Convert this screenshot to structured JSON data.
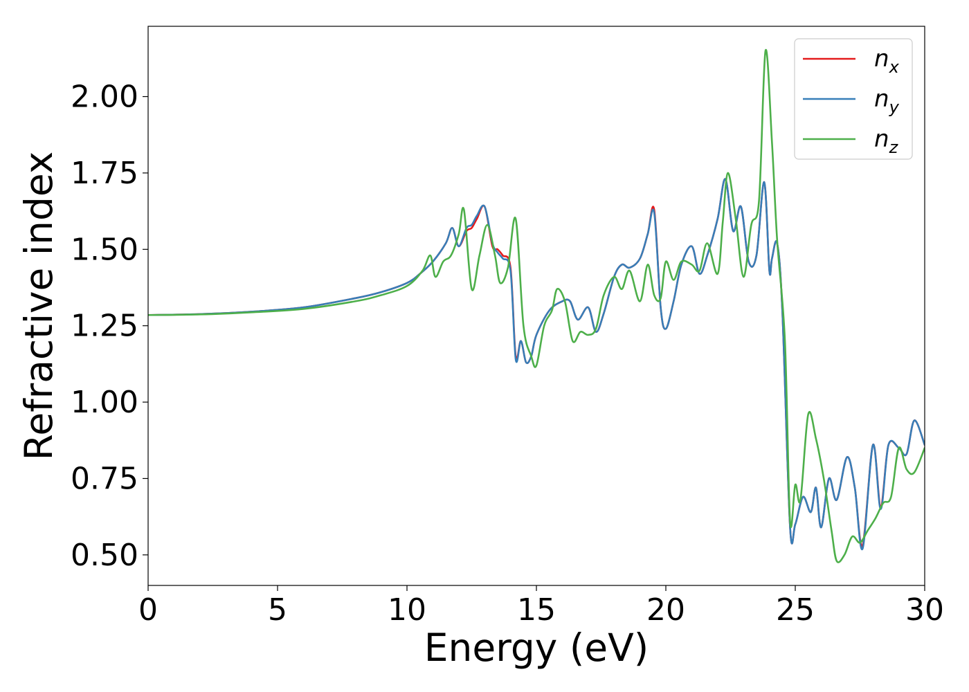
{
  "chart_data": {
    "type": "line",
    "xlabel": "Energy (eV)",
    "ylabel": "Refractive index",
    "xlim": [
      0,
      30
    ],
    "ylim": [
      0.4,
      2.23
    ],
    "xticks": [
      "0",
      "5",
      "10",
      "15",
      "20",
      "25",
      "30"
    ],
    "yticks": [
      "0.50",
      "0.75",
      "1.00",
      "1.25",
      "1.50",
      "1.75",
      "2.00"
    ],
    "grid": false,
    "legend_position": "top-right",
    "series": [
      {
        "name": "n_x",
        "label_base": "n",
        "label_sub": "x",
        "color": "#e41a1c",
        "x": [
          0,
          2,
          4,
          6,
          8,
          9,
          10,
          10.5,
          11,
          11.5,
          11.75,
          12,
          12.3,
          12.5,
          12.7,
          13,
          13.3,
          13.5,
          13.7,
          14,
          14.2,
          14.4,
          14.6,
          14.8,
          15,
          15.5,
          16,
          16.3,
          16.6,
          17,
          17.3,
          17.6,
          18,
          18.3,
          18.6,
          19,
          19.3,
          19.55,
          19.8,
          20,
          20.3,
          20.6,
          21,
          21.3,
          21.6,
          22,
          22.3,
          22.6,
          22.9,
          23.2,
          23.5,
          23.8,
          24,
          24.1,
          24.3,
          24.5,
          24.8,
          25,
          25.3,
          25.6,
          25.8,
          26,
          26.3,
          26.6,
          27,
          27.3,
          27.6,
          28,
          28.3,
          28.6,
          29,
          29.3,
          29.6,
          30
        ],
        "values": [
          1.285,
          1.288,
          1.296,
          1.31,
          1.34,
          1.36,
          1.39,
          1.42,
          1.46,
          1.52,
          1.57,
          1.51,
          1.56,
          1.57,
          1.6,
          1.64,
          1.51,
          1.5,
          1.48,
          1.44,
          1.15,
          1.2,
          1.13,
          1.15,
          1.22,
          1.3,
          1.33,
          1.33,
          1.27,
          1.31,
          1.23,
          1.29,
          1.41,
          1.45,
          1.44,
          1.47,
          1.55,
          1.63,
          1.31,
          1.24,
          1.33,
          1.45,
          1.51,
          1.42,
          1.48,
          1.6,
          1.73,
          1.56,
          1.64,
          1.46,
          1.48,
          1.72,
          1.43,
          1.47,
          1.52,
          1.3,
          0.59,
          0.6,
          0.69,
          0.64,
          0.72,
          0.59,
          0.75,
          0.68,
          0.82,
          0.72,
          0.53,
          0.86,
          0.66,
          0.86,
          0.85,
          0.83,
          0.94,
          0.86
        ]
      },
      {
        "name": "n_y",
        "label_base": "n",
        "label_sub": "y",
        "color": "#377eb8",
        "x": [
          0,
          2,
          4,
          6,
          8,
          9,
          10,
          10.5,
          11,
          11.5,
          11.75,
          12,
          12.3,
          12.5,
          12.7,
          13,
          13.3,
          13.5,
          13.7,
          14,
          14.2,
          14.4,
          14.6,
          14.8,
          15,
          15.5,
          16,
          16.3,
          16.6,
          17,
          17.3,
          17.6,
          18,
          18.3,
          18.6,
          19,
          19.3,
          19.55,
          19.8,
          20,
          20.3,
          20.6,
          21,
          21.3,
          21.6,
          22,
          22.3,
          22.6,
          22.9,
          23.2,
          23.5,
          23.8,
          24,
          24.1,
          24.3,
          24.5,
          24.8,
          25,
          25.3,
          25.6,
          25.8,
          26,
          26.3,
          26.6,
          27,
          27.3,
          27.6,
          28,
          28.3,
          28.6,
          29,
          29.3,
          29.6,
          30
        ],
        "values": [
          1.285,
          1.288,
          1.296,
          1.31,
          1.34,
          1.36,
          1.39,
          1.42,
          1.46,
          1.52,
          1.57,
          1.51,
          1.57,
          1.58,
          1.61,
          1.64,
          1.52,
          1.49,
          1.47,
          1.43,
          1.14,
          1.2,
          1.13,
          1.15,
          1.22,
          1.3,
          1.33,
          1.33,
          1.27,
          1.31,
          1.23,
          1.29,
          1.41,
          1.45,
          1.44,
          1.47,
          1.55,
          1.62,
          1.31,
          1.24,
          1.33,
          1.45,
          1.51,
          1.42,
          1.48,
          1.6,
          1.73,
          1.56,
          1.64,
          1.46,
          1.48,
          1.72,
          1.43,
          1.47,
          1.52,
          1.3,
          0.59,
          0.6,
          0.69,
          0.64,
          0.72,
          0.59,
          0.75,
          0.68,
          0.82,
          0.72,
          0.52,
          0.86,
          0.65,
          0.86,
          0.85,
          0.83,
          0.94,
          0.86
        ]
      },
      {
        "name": "n_z",
        "label_base": "n",
        "label_sub": "z",
        "color": "#4daf4a",
        "x": [
          0,
          2,
          4,
          6,
          8,
          9,
          10,
          10.6,
          10.9,
          11.1,
          11.4,
          11.7,
          12,
          12.2,
          12.5,
          12.8,
          13.1,
          13.4,
          13.6,
          13.9,
          14.2,
          14.5,
          14.8,
          15,
          15.3,
          15.6,
          15.8,
          16.1,
          16.4,
          16.7,
          17,
          17.3,
          17.6,
          18,
          18.3,
          18.6,
          19,
          19.3,
          19.55,
          19.8,
          20,
          20.3,
          20.6,
          21,
          21.3,
          21.6,
          22,
          22.2,
          22.4,
          22.7,
          23,
          23.3,
          23.6,
          23.85,
          24.1,
          24.3,
          24.6,
          24.8,
          25,
          25.2,
          25.5,
          25.8,
          26.1,
          26.4,
          26.6,
          26.9,
          27.2,
          27.5,
          27.8,
          28.1,
          28.4,
          28.7,
          29,
          29.3,
          29.6,
          30
        ],
        "values": [
          1.285,
          1.287,
          1.294,
          1.305,
          1.33,
          1.35,
          1.38,
          1.43,
          1.48,
          1.41,
          1.46,
          1.48,
          1.55,
          1.63,
          1.37,
          1.48,
          1.58,
          1.48,
          1.39,
          1.44,
          1.6,
          1.25,
          1.15,
          1.12,
          1.25,
          1.3,
          1.37,
          1.33,
          1.2,
          1.23,
          1.22,
          1.24,
          1.35,
          1.41,
          1.37,
          1.43,
          1.33,
          1.45,
          1.35,
          1.34,
          1.46,
          1.4,
          1.46,
          1.45,
          1.43,
          1.52,
          1.42,
          1.59,
          1.75,
          1.6,
          1.41,
          1.58,
          1.66,
          2.15,
          1.85,
          1.53,
          1.2,
          0.61,
          0.73,
          0.68,
          0.96,
          0.88,
          0.75,
          0.58,
          0.48,
          0.5,
          0.56,
          0.54,
          0.58,
          0.62,
          0.67,
          0.69,
          0.85,
          0.78,
          0.77,
          0.85
        ]
      }
    ]
  }
}
